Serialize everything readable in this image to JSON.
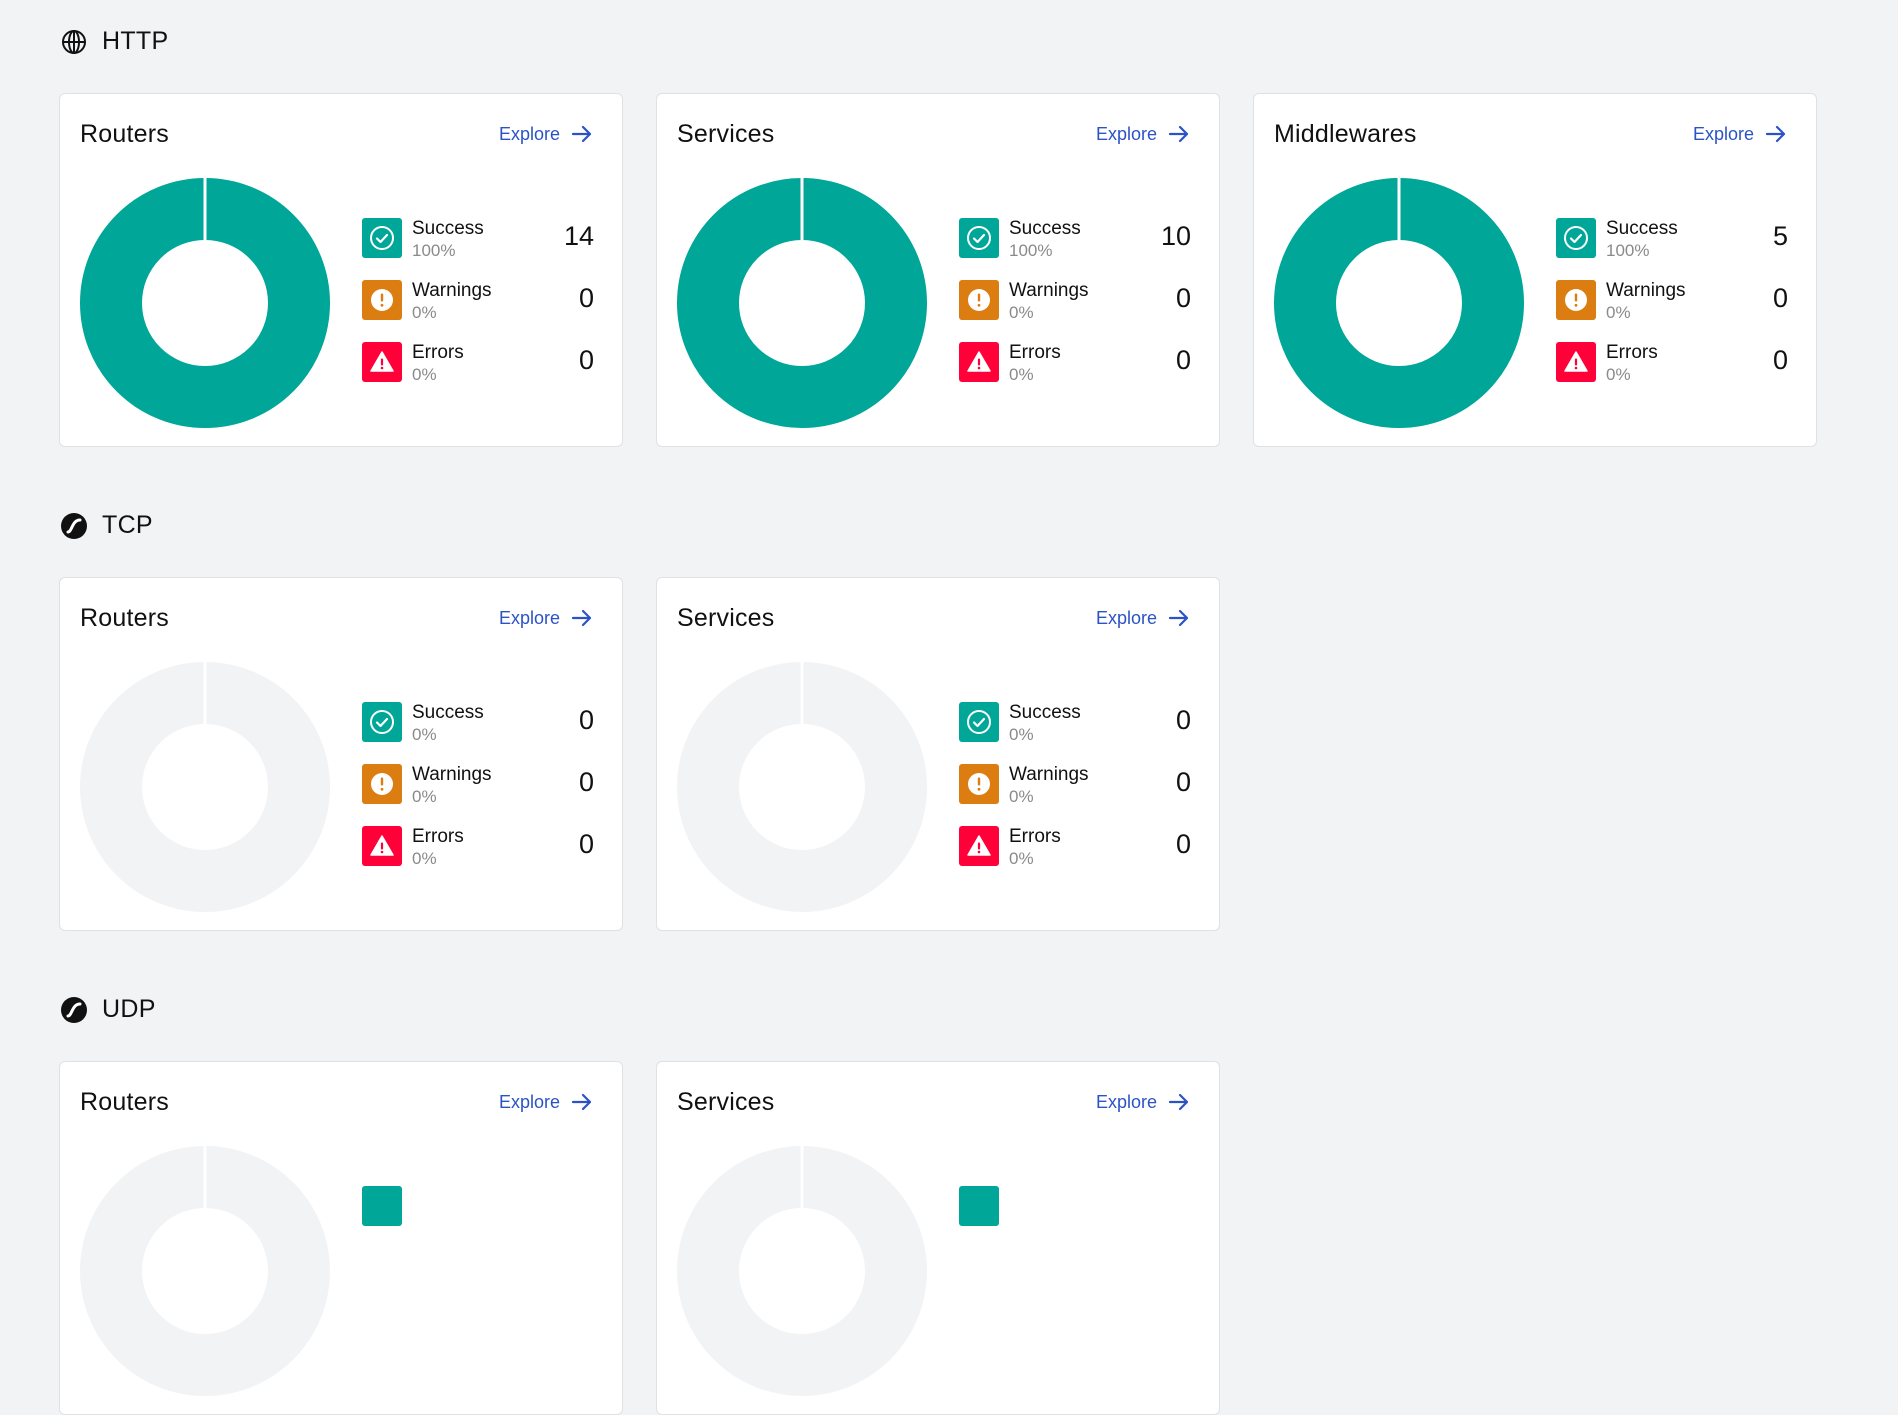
{
  "colors": {
    "success": "#00a697",
    "warnings": "#db7d11",
    "errors": "#ff0039",
    "empty": "#f2f3f5",
    "link": "#2b53c6"
  },
  "sections": [
    {
      "name": "HTTP",
      "icon": "globe-icon",
      "cards": [
        {
          "title": "Routers",
          "explore": "Explore",
          "rows": [
            {
              "label": "Success",
              "pct": "100%",
              "count": "14"
            },
            {
              "label": "Warnings",
              "pct": "0%",
              "count": "0"
            },
            {
              "label": "Errors",
              "pct": "0%",
              "count": "0"
            }
          ]
        },
        {
          "title": "Services",
          "explore": "Explore",
          "rows": [
            {
              "label": "Success",
              "pct": "100%",
              "count": "10"
            },
            {
              "label": "Warnings",
              "pct": "0%",
              "count": "0"
            },
            {
              "label": "Errors",
              "pct": "0%",
              "count": "0"
            }
          ]
        },
        {
          "title": "Middlewares",
          "explore": "Explore",
          "rows": [
            {
              "label": "Success",
              "pct": "100%",
              "count": "5"
            },
            {
              "label": "Warnings",
              "pct": "0%",
              "count": "0"
            },
            {
              "label": "Errors",
              "pct": "0%",
              "count": "0"
            }
          ]
        }
      ]
    },
    {
      "name": "TCP",
      "icon": "protocol-icon",
      "cards": [
        {
          "title": "Routers",
          "explore": "Explore",
          "rows": [
            {
              "label": "Success",
              "pct": "0%",
              "count": "0"
            },
            {
              "label": "Warnings",
              "pct": "0%",
              "count": "0"
            },
            {
              "label": "Errors",
              "pct": "0%",
              "count": "0"
            }
          ]
        },
        {
          "title": "Services",
          "explore": "Explore",
          "rows": [
            {
              "label": "Success",
              "pct": "0%",
              "count": "0"
            },
            {
              "label": "Warnings",
              "pct": "0%",
              "count": "0"
            },
            {
              "label": "Errors",
              "pct": "0%",
              "count": "0"
            }
          ]
        }
      ]
    },
    {
      "name": "UDP",
      "icon": "protocol-icon",
      "cards": [
        {
          "title": "Routers",
          "explore": "Explore"
        },
        {
          "title": "Services",
          "explore": "Explore"
        }
      ]
    }
  ]
}
